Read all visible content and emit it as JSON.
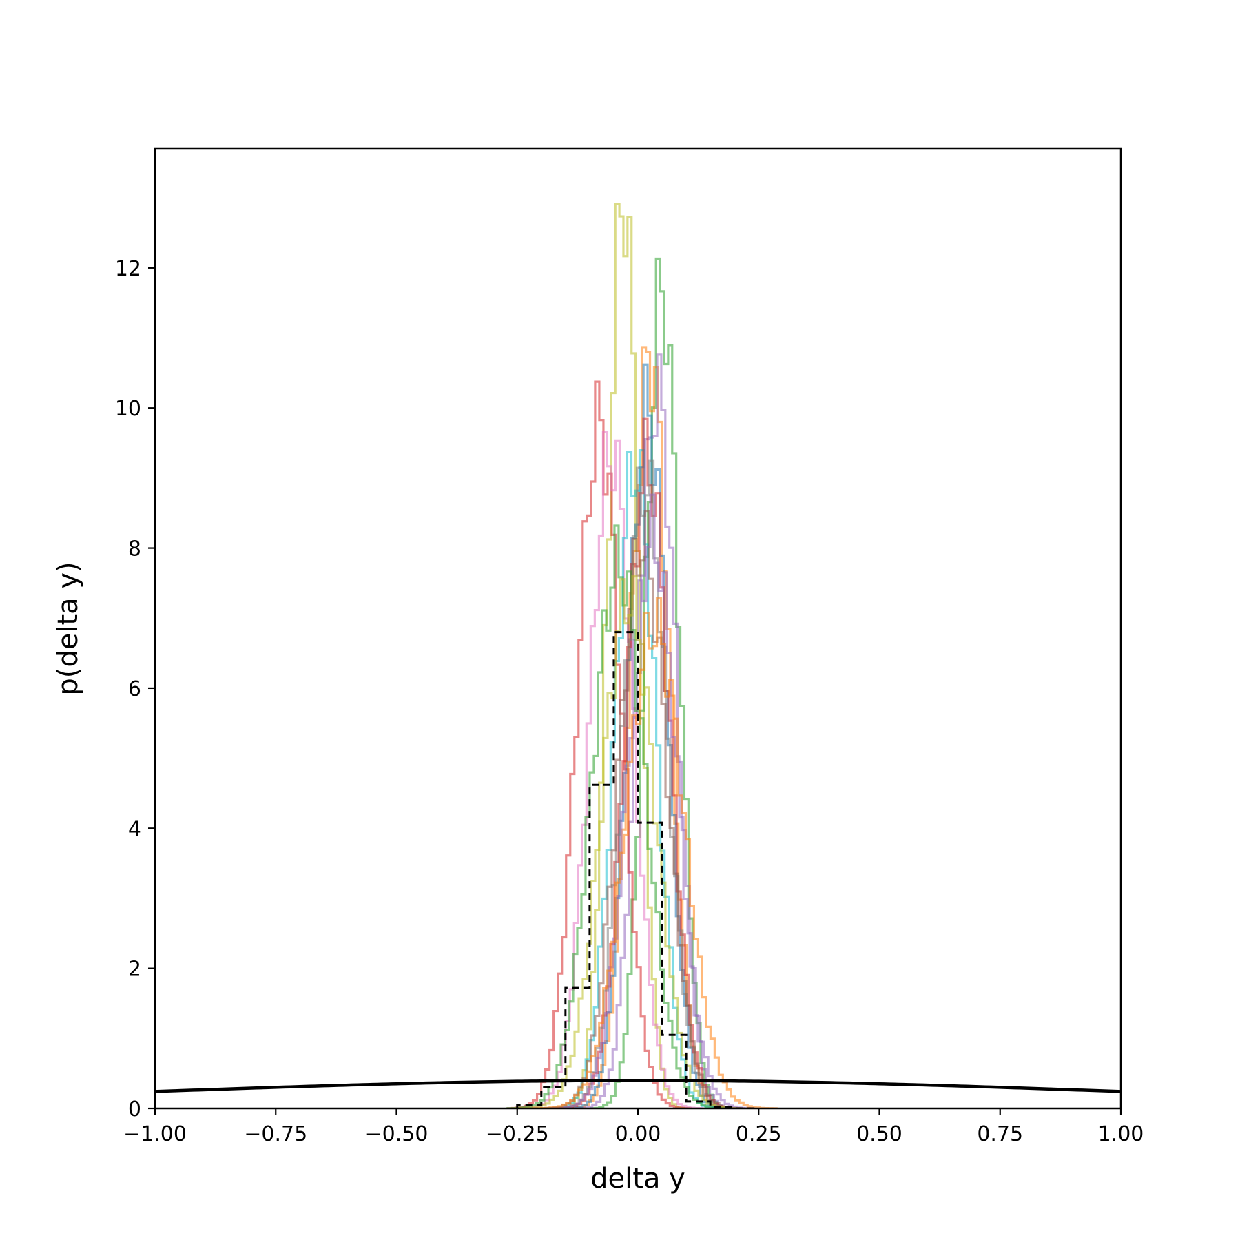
{
  "chart_data": {
    "type": "histogram",
    "xlabel": "delta y",
    "ylabel": "p(delta y)",
    "xlim": [
      -1.0,
      1.0
    ],
    "ylim": [
      0,
      13.7
    ],
    "x_ticks": [
      -1.0,
      -0.75,
      -0.5,
      -0.25,
      0.0,
      0.25,
      0.5,
      0.75,
      1.0
    ],
    "x_tick_labels": [
      "−1.00",
      "−0.75",
      "−0.50",
      "−0.25",
      "0.00",
      "0.25",
      "0.50",
      "0.75",
      "1.00"
    ],
    "y_ticks": [
      0,
      2,
      4,
      6,
      8,
      10,
      12
    ],
    "y_tick_labels": [
      "0",
      "2",
      "4",
      "6",
      "8",
      "10",
      "12"
    ],
    "grid": false,
    "legend": "none",
    "step_histograms": [
      {
        "color": "#bcbd22",
        "peak_x": -0.03,
        "peak_y": 13.05,
        "sigma": 0.032
      },
      {
        "color": "#2ca02c",
        "peak_x": 0.05,
        "peak_y": 11.7,
        "sigma": 0.035
      },
      {
        "color": "#ff7f0e",
        "peak_x": 0.025,
        "peak_y": 10.75,
        "sigma": 0.04
      },
      {
        "color": "#9467bd",
        "peak_x": 0.04,
        "peak_y": 10.25,
        "sigma": 0.04
      },
      {
        "color": "#1f77b4",
        "peak_x": 0.02,
        "peak_y": 10.0,
        "sigma": 0.04
      },
      {
        "color": "#d62728",
        "peak_x": -0.08,
        "peak_y": 9.8,
        "sigma": 0.045
      },
      {
        "color": "#e377c2",
        "peak_x": -0.055,
        "peak_y": 9.4,
        "sigma": 0.045
      },
      {
        "color": "#17becf",
        "peak_x": -0.005,
        "peak_y": 9.2,
        "sigma": 0.043
      },
      {
        "color": "#d62728",
        "peak_x": 0.02,
        "peak_y": 9.25,
        "sigma": 0.045
      },
      {
        "color": "#7f7f7f",
        "peak_x": 0.015,
        "peak_y": 9.0,
        "sigma": 0.045
      },
      {
        "color": "#8c564b",
        "peak_x": 0.01,
        "peak_y": 8.1,
        "sigma": 0.05
      },
      {
        "color": "#9467bd",
        "peak_x": 0.03,
        "peak_y": 8.2,
        "sigma": 0.05
      },
      {
        "color": "#2ca02c",
        "peak_x": -0.04,
        "peak_y": 7.8,
        "sigma": 0.055
      },
      {
        "color": "#bcbd22",
        "peak_x": -0.02,
        "peak_y": 7.3,
        "sigma": 0.055
      },
      {
        "color": "#ff7f0e",
        "peak_x": 0.035,
        "peak_y": 6.9,
        "sigma": 0.06
      }
    ],
    "dashed_histogram": {
      "color": "#000000",
      "bin_edges": [
        -0.25,
        -0.2,
        -0.15,
        -0.1,
        -0.05,
        0.0,
        0.05,
        0.1,
        0.15,
        0.2,
        0.25
      ],
      "values": [
        0.05,
        0.3,
        1.72,
        4.62,
        6.8,
        4.08,
        1.05,
        0.1,
        0.02,
        0.0
      ]
    },
    "prior_curve": {
      "type": "normal_pdf",
      "mean": 0.0,
      "sigma": 1.0,
      "color": "#000000"
    }
  }
}
